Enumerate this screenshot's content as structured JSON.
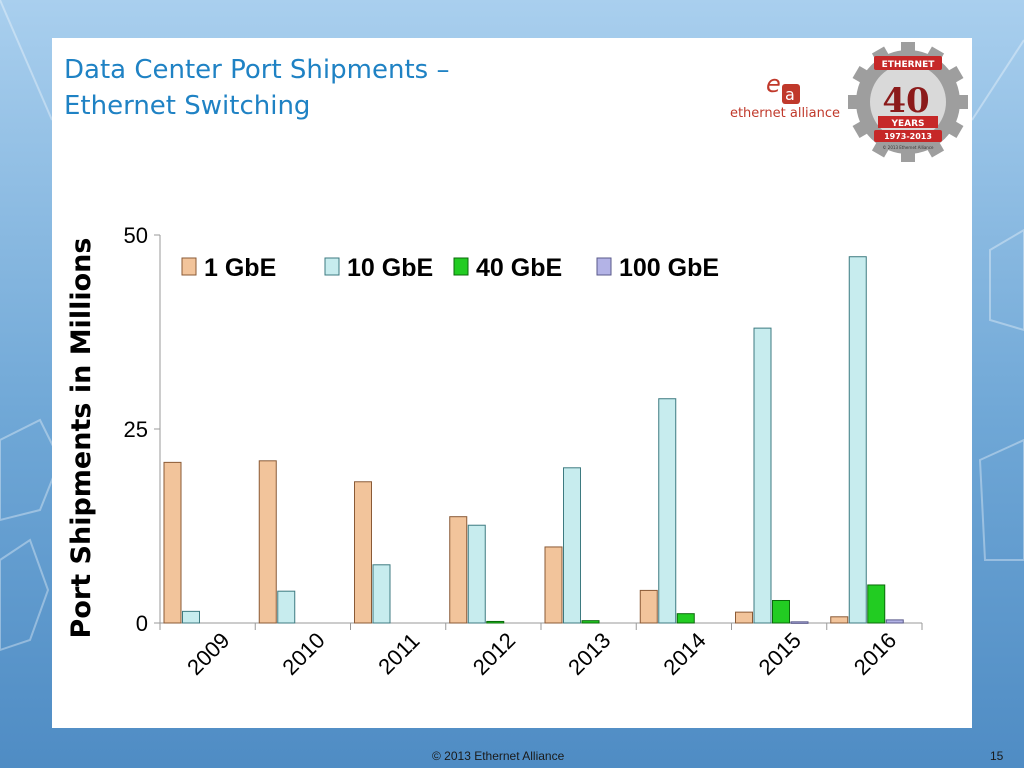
{
  "slide": {
    "title_line1": "Data Center Port Shipments –",
    "title_line2": "Ethernet Switching",
    "logo_text": "ethernet alliance",
    "seal_top": "ETHERNET",
    "seal_number": "40",
    "seal_word": "YEARS",
    "seal_years": "1973-2013",
    "seal_small": "© 2013 Ethernet Alliance",
    "footer_copyright": "© 2013 Ethernet Alliance",
    "page_number": "15"
  },
  "colors": {
    "gbe1": "#f2c49b",
    "gbe10": "#c7ecee",
    "gbe40": "#22cc22",
    "gbe100": "#b3b3e6",
    "title": "#1f82c4"
  },
  "chart_data": {
    "type": "bar",
    "categories": [
      "2009",
      "2010",
      "2011",
      "2012",
      "2013",
      "2014",
      "2015",
      "2016"
    ],
    "series": [
      {
        "name": "1 GbE",
        "values": [
          20.7,
          20.9,
          18.2,
          13.7,
          9.8,
          4.2,
          1.4,
          0.8
        ]
      },
      {
        "name": "10 GbE",
        "values": [
          1.5,
          4.1,
          7.5,
          12.6,
          20.0,
          28.9,
          38.0,
          47.2
        ]
      },
      {
        "name": "40 GbE",
        "values": [
          0,
          0,
          0,
          0.2,
          0.3,
          1.2,
          2.9,
          4.9
        ]
      },
      {
        "name": "100 GbE",
        "values": [
          0,
          0,
          0,
          0,
          0,
          0,
          0.15,
          0.4
        ]
      }
    ],
    "title": "",
    "xlabel": "",
    "ylabel": "Port Shipments in Millions",
    "ylim": [
      0,
      50
    ],
    "yticks": [
      0,
      25,
      50
    ],
    "legend": "top",
    "grid": false
  }
}
